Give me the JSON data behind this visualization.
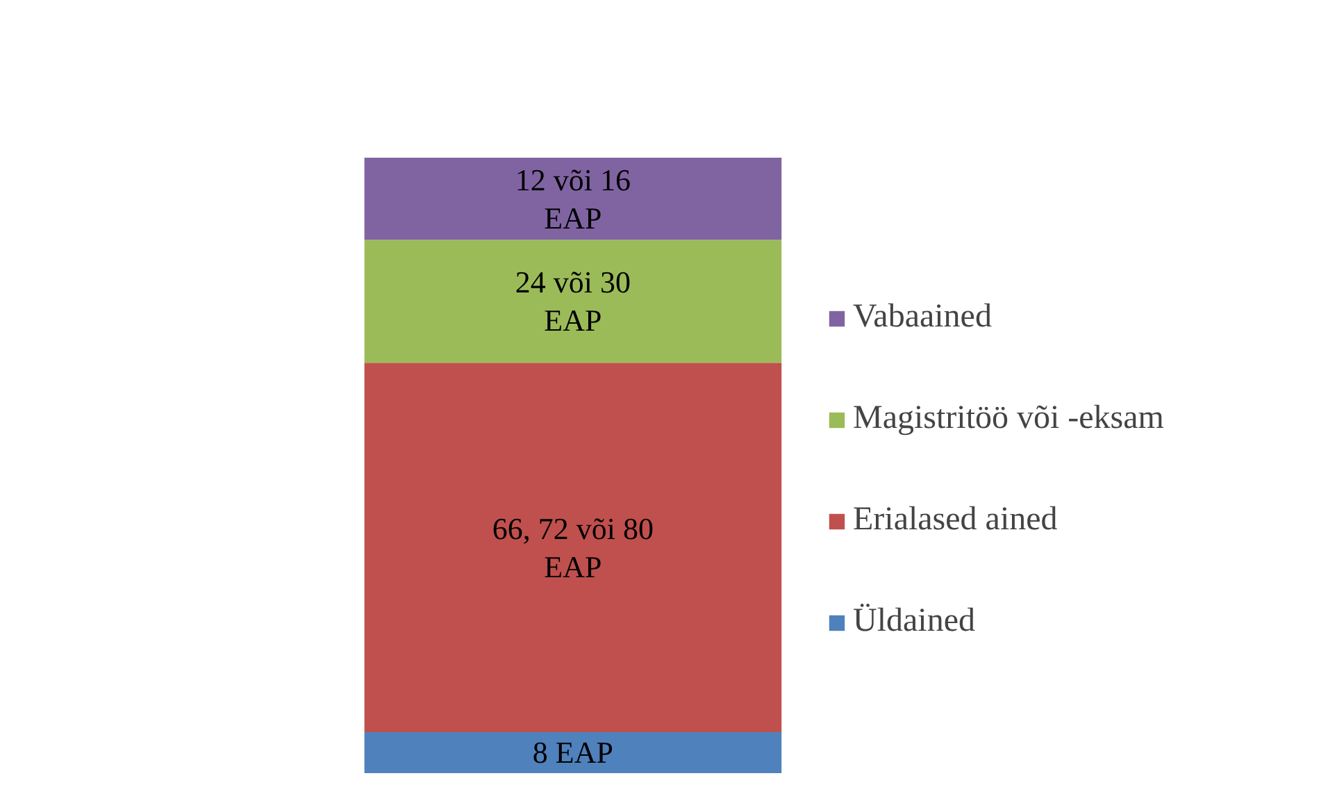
{
  "chart_data": {
    "type": "bar",
    "stacked": true,
    "categories": [
      null
    ],
    "legend": "right",
    "series": [
      {
        "name": "Üldained",
        "color": "#4f81bd",
        "values": [
          8
        ],
        "value_labels": [
          "8 EAP"
        ]
      },
      {
        "name": "Erialased ained",
        "color": "#c0504d",
        "values": [
          72
        ],
        "value_labels": [
          "66, 72 või 80\nEAP"
        ]
      },
      {
        "name": "Magistritöö või -eksam",
        "color": "#9bbb59",
        "values": [
          24
        ],
        "value_labels": [
          "24 või 30\nEAP"
        ]
      },
      {
        "name": "Vabaained",
        "color": "#8064a2",
        "values": [
          16
        ],
        "value_labels": [
          "12 või 16\nEAP"
        ]
      }
    ]
  }
}
